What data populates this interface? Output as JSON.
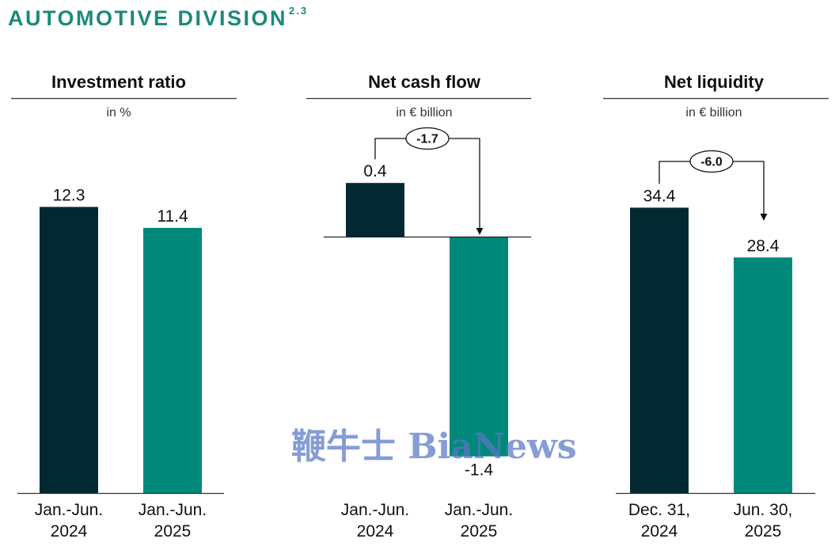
{
  "header": {
    "title": "AUTOMOTIVE DIVISION",
    "footnote": "2.3"
  },
  "colors": {
    "accent": "#1b8a7a",
    "dark_bar": "#022831",
    "teal_bar": "#00897b",
    "watermark": "#5876c4"
  },
  "watermark": "鞭牛士 BiaNews",
  "chart_data": [
    {
      "type": "bar",
      "title": "Investment ratio",
      "unit": "in %",
      "categories": [
        [
          "Jan.-Jun.",
          "2024"
        ],
        [
          "Jan.-Jun.",
          "2025"
        ]
      ],
      "values": [
        12.3,
        11.4
      ],
      "labels": [
        "12.3",
        "11.4"
      ],
      "ylim": [
        0,
        14.8
      ]
    },
    {
      "type": "bar",
      "title": "Net cash flow",
      "unit": "in € billion",
      "categories": [
        [
          "Jan.-Jun.",
          "2024"
        ],
        [
          "Jan.-Jun.",
          "2025"
        ]
      ],
      "values": [
        0.4,
        -1.4
      ],
      "labels": [
        "0.4",
        "-1.4"
      ],
      "change": "-1.7",
      "ylim": [
        -1.48,
        0.5
      ]
    },
    {
      "type": "bar",
      "title": "Net liquidity",
      "unit": "in € billion",
      "categories": [
        [
          "Dec. 31,",
          "2024"
        ],
        [
          "Jun. 30,",
          "2025"
        ]
      ],
      "values": [
        34.4,
        28.4
      ],
      "labels": [
        "34.4",
        "28.4"
      ],
      "change": "-6.0",
      "ylim": [
        0,
        41.5
      ]
    }
  ]
}
